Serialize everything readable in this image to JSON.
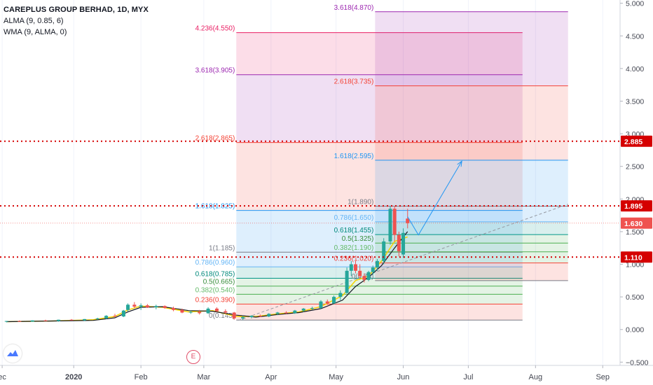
{
  "legend": {
    "title": "CAREPLUS GROUP BERHAD, 1D, MYX",
    "ind1": "ALMA (9, 0.85, 6)",
    "ind2": "WMA (9, ALMA, 0)"
  },
  "colors": {
    "up": "#26a69a",
    "down": "#ef5350",
    "alma": "#f5d300",
    "wma": "#131722",
    "hline": "#d50000",
    "fib_red": "#f44336",
    "fib_purple": "#9c27b0",
    "fib_blue": "#2196f3",
    "fib_green": "#4caf50",
    "axis_text": "#434651"
  },
  "marker_e": "E",
  "chart_data": {
    "type": "candlestick",
    "title": "CAREPLUS GROUP BERHAD, 1D, MYX",
    "y_axis": {
      "ticks": [
        5.0,
        4.5,
        4.0,
        3.5,
        3.0,
        2.5,
        2.0,
        1.5,
        1.0,
        0.5,
        0.0,
        -0.5
      ],
      "tick_labels": [
        "5.000",
        "4.500",
        "4.000",
        "3.500",
        "3.000",
        "2.500",
        "2.000",
        "1.500",
        "1.000",
        "0.500",
        "0.000",
        "−0.500"
      ],
      "ylim": [
        -0.55,
        5.05
      ]
    },
    "x_axis": {
      "ticks": [
        {
          "label": "ec",
          "day": -2,
          "bold": false
        },
        {
          "label": "2020",
          "day": 31,
          "bold": true
        },
        {
          "label": "Feb",
          "day": 62,
          "bold": false
        },
        {
          "label": "Mar",
          "day": 91,
          "bold": false
        },
        {
          "label": "Apr",
          "day": 122,
          "bold": false
        },
        {
          "label": "May",
          "day": 152,
          "bold": false
        },
        {
          "label": "Jun",
          "day": 183,
          "bold": false
        },
        {
          "label": "Jul",
          "day": 213,
          "bold": false
        },
        {
          "label": "Aug",
          "day": 244,
          "bold": false
        },
        {
          "label": "Sep",
          "day": 275,
          "bold": false
        }
      ],
      "xlim": [
        -3,
        283
      ]
    },
    "price_labels": [
      {
        "text": "2.885",
        "value": 2.885,
        "color": "#d50000"
      },
      {
        "text": "1.895",
        "value": 1.895,
        "color": "#d50000"
      },
      {
        "text": "1.630",
        "value": 1.63,
        "color": "#ef5350"
      },
      {
        "text": "1.110",
        "value": 1.11,
        "color": "#d50000"
      }
    ],
    "horizontal_lines": [
      {
        "value": 2.885,
        "style": "dotted"
      },
      {
        "value": 1.895,
        "style": "dotted"
      },
      {
        "value": 1.11,
        "style": "dotted"
      },
      {
        "value": 1.63,
        "style": "thin"
      }
    ],
    "fib_sets": [
      {
        "name": "fib-set-a",
        "x_start": 106,
        "x_end": 238,
        "levels": [
          {
            "ratio": "0",
            "value": 0.145,
            "label": "0(0.145)"
          },
          {
            "ratio": "0.236",
            "value": 0.39,
            "label": "0.236(0.390)"
          },
          {
            "ratio": "0.382",
            "value": 0.54,
            "label": "0.382(0.540)"
          },
          {
            "ratio": "0.5",
            "value": 0.665,
            "label": "0.5(0.665)"
          },
          {
            "ratio": "0.618",
            "value": 0.785,
            "label": "0.618(0.785)"
          },
          {
            "ratio": "0.786",
            "value": 0.96,
            "label": "0.786(0.960)"
          },
          {
            "ratio": "1",
            "value": 1.185,
            "label": "1(1.185)"
          },
          {
            "ratio": "1.618",
            "value": 1.825,
            "label": "1.618(1.825)"
          },
          {
            "ratio": "2.618",
            "value": 2.865,
            "label": "2.618(2.865)"
          },
          {
            "ratio": "3.618",
            "value": 3.905,
            "label": "3.618(3.905)"
          },
          {
            "ratio": "4.236",
            "value": 4.55,
            "label": "4.236(4.550)"
          }
        ]
      },
      {
        "name": "fib-set-b",
        "x_start": 170,
        "x_end": 259,
        "levels": [
          {
            "ratio": "0",
            "value": 0.75,
            "label": "0(0.75)"
          },
          {
            "ratio": "0.236",
            "value": 1.02,
            "label": "0.236(1.020)"
          },
          {
            "ratio": "0.382",
            "value": 1.19,
            "label": "0.382(1.190)"
          },
          {
            "ratio": "0.5",
            "value": 1.325,
            "label": "0.5(1.325)"
          },
          {
            "ratio": "0.618",
            "value": 1.455,
            "label": "0.618(1.455)"
          },
          {
            "ratio": "0.786",
            "value": 1.65,
            "label": "0.786(1.650)"
          },
          {
            "ratio": "1",
            "value": 1.89,
            "label": "1(1.890)"
          },
          {
            "ratio": "1.618",
            "value": 2.595,
            "label": "1.618(2.595)"
          },
          {
            "ratio": "2.618",
            "value": 3.735,
            "label": "2.618(3.735)"
          },
          {
            "ratio": "3.618",
            "value": 4.87,
            "label": "3.618(4.870)"
          }
        ]
      }
    ],
    "projection_arrow": {
      "points": [
        {
          "day": 185,
          "value": 1.73
        },
        {
          "day": 190,
          "value": 1.45
        },
        {
          "day": 210,
          "value": 2.58
        }
      ]
    },
    "trendline": {
      "from": {
        "day": 107,
        "value": 0.14
      },
      "to": {
        "day": 259,
        "value": 1.92
      }
    },
    "candles": [
      {
        "d": 0,
        "o": 0.12,
        "h": 0.13,
        "l": 0.11,
        "c": 0.13
      },
      {
        "d": 6,
        "o": 0.13,
        "h": 0.14,
        "l": 0.12,
        "c": 0.12
      },
      {
        "d": 12,
        "o": 0.12,
        "h": 0.14,
        "l": 0.12,
        "c": 0.14
      },
      {
        "d": 18,
        "o": 0.14,
        "h": 0.15,
        "l": 0.13,
        "c": 0.13
      },
      {
        "d": 24,
        "o": 0.13,
        "h": 0.15,
        "l": 0.12,
        "c": 0.15
      },
      {
        "d": 30,
        "o": 0.15,
        "h": 0.16,
        "l": 0.14,
        "c": 0.14
      },
      {
        "d": 36,
        "o": 0.14,
        "h": 0.16,
        "l": 0.13,
        "c": 0.16
      },
      {
        "d": 42,
        "o": 0.16,
        "h": 0.18,
        "l": 0.15,
        "c": 0.17
      },
      {
        "d": 46,
        "o": 0.17,
        "h": 0.22,
        "l": 0.16,
        "c": 0.21
      },
      {
        "d": 50,
        "o": 0.21,
        "h": 0.24,
        "l": 0.19,
        "c": 0.2
      },
      {
        "d": 54,
        "o": 0.2,
        "h": 0.3,
        "l": 0.19,
        "c": 0.29
      },
      {
        "d": 56,
        "o": 0.3,
        "h": 0.4,
        "l": 0.28,
        "c": 0.38
      },
      {
        "d": 59,
        "o": 0.38,
        "h": 0.42,
        "l": 0.33,
        "c": 0.35
      },
      {
        "d": 62,
        "o": 0.35,
        "h": 0.4,
        "l": 0.3,
        "c": 0.37
      },
      {
        "d": 65,
        "o": 0.37,
        "h": 0.39,
        "l": 0.33,
        "c": 0.34
      },
      {
        "d": 69,
        "o": 0.34,
        "h": 0.38,
        "l": 0.31,
        "c": 0.36
      },
      {
        "d": 73,
        "o": 0.36,
        "h": 0.37,
        "l": 0.32,
        "c": 0.33
      },
      {
        "d": 77,
        "o": 0.33,
        "h": 0.35,
        "l": 0.28,
        "c": 0.3
      },
      {
        "d": 81,
        "o": 0.3,
        "h": 0.32,
        "l": 0.25,
        "c": 0.26
      },
      {
        "d": 85,
        "o": 0.26,
        "h": 0.29,
        "l": 0.24,
        "c": 0.27
      },
      {
        "d": 89,
        "o": 0.27,
        "h": 0.3,
        "l": 0.23,
        "c": 0.25
      },
      {
        "d": 93,
        "o": 0.25,
        "h": 0.34,
        "l": 0.24,
        "c": 0.32
      },
      {
        "d": 97,
        "o": 0.32,
        "h": 0.34,
        "l": 0.27,
        "c": 0.28
      },
      {
        "d": 101,
        "o": 0.28,
        "h": 0.31,
        "l": 0.24,
        "c": 0.26
      },
      {
        "d": 105,
        "o": 0.26,
        "h": 0.27,
        "l": 0.15,
        "c": 0.17
      },
      {
        "d": 109,
        "o": 0.17,
        "h": 0.21,
        "l": 0.145,
        "c": 0.19
      },
      {
        "d": 113,
        "o": 0.19,
        "h": 0.22,
        "l": 0.17,
        "c": 0.21
      },
      {
        "d": 117,
        "o": 0.21,
        "h": 0.23,
        "l": 0.19,
        "c": 0.2
      },
      {
        "d": 121,
        "o": 0.2,
        "h": 0.25,
        "l": 0.19,
        "c": 0.24
      },
      {
        "d": 125,
        "o": 0.24,
        "h": 0.27,
        "l": 0.22,
        "c": 0.26
      },
      {
        "d": 129,
        "o": 0.26,
        "h": 0.28,
        "l": 0.24,
        "c": 0.25
      },
      {
        "d": 133,
        "o": 0.25,
        "h": 0.3,
        "l": 0.24,
        "c": 0.29
      },
      {
        "d": 137,
        "o": 0.29,
        "h": 0.33,
        "l": 0.27,
        "c": 0.32
      },
      {
        "d": 141,
        "o": 0.32,
        "h": 0.35,
        "l": 0.3,
        "c": 0.33
      },
      {
        "d": 145,
        "o": 0.33,
        "h": 0.45,
        "l": 0.31,
        "c": 0.43
      },
      {
        "d": 148,
        "o": 0.43,
        "h": 0.46,
        "l": 0.38,
        "c": 0.4
      },
      {
        "d": 151,
        "o": 0.4,
        "h": 0.52,
        "l": 0.39,
        "c": 0.5
      },
      {
        "d": 154,
        "o": 0.5,
        "h": 0.6,
        "l": 0.45,
        "c": 0.56
      },
      {
        "d": 157,
        "o": 0.56,
        "h": 0.95,
        "l": 0.55,
        "c": 0.9
      },
      {
        "d": 159,
        "o": 0.9,
        "h": 1.05,
        "l": 0.82,
        "c": 1.0
      },
      {
        "d": 161,
        "o": 1.0,
        "h": 1.05,
        "l": 0.86,
        "c": 0.9
      },
      {
        "d": 163,
        "o": 0.9,
        "h": 1.0,
        "l": 0.78,
        "c": 0.82
      },
      {
        "d": 165,
        "o": 0.82,
        "h": 0.86,
        "l": 0.72,
        "c": 0.76
      },
      {
        "d": 167,
        "o": 0.76,
        "h": 0.9,
        "l": 0.74,
        "c": 0.88
      },
      {
        "d": 169,
        "o": 0.88,
        "h": 0.98,
        "l": 0.84,
        "c": 0.95
      },
      {
        "d": 171,
        "o": 0.95,
        "h": 1.08,
        "l": 0.9,
        "c": 1.05
      },
      {
        "d": 174,
        "o": 1.05,
        "h": 1.4,
        "l": 1.0,
        "c": 1.35
      },
      {
        "d": 177,
        "o": 1.35,
        "h": 1.89,
        "l": 1.3,
        "c": 1.85
      },
      {
        "d": 179,
        "o": 1.85,
        "h": 1.89,
        "l": 1.35,
        "c": 1.45
      },
      {
        "d": 181,
        "o": 1.45,
        "h": 1.5,
        "l": 1.12,
        "c": 1.2
      },
      {
        "d": 183,
        "o": 1.15,
        "h": 1.55,
        "l": 1.1,
        "c": 1.48
      },
      {
        "d": 185,
        "o": 1.7,
        "h": 1.85,
        "l": 1.55,
        "c": 1.63
      }
    ],
    "alma_line": [
      {
        "d": 0,
        "v": 0.12
      },
      {
        "d": 20,
        "v": 0.13
      },
      {
        "d": 40,
        "v": 0.15
      },
      {
        "d": 50,
        "v": 0.2
      },
      {
        "d": 56,
        "v": 0.3
      },
      {
        "d": 62,
        "v": 0.36
      },
      {
        "d": 72,
        "v": 0.34
      },
      {
        "d": 84,
        "v": 0.27
      },
      {
        "d": 95,
        "v": 0.29
      },
      {
        "d": 106,
        "v": 0.2
      },
      {
        "d": 115,
        "v": 0.2
      },
      {
        "d": 125,
        "v": 0.24
      },
      {
        "d": 135,
        "v": 0.27
      },
      {
        "d": 145,
        "v": 0.35
      },
      {
        "d": 155,
        "v": 0.52
      },
      {
        "d": 161,
        "v": 0.75
      },
      {
        "d": 167,
        "v": 0.82
      },
      {
        "d": 173,
        "v": 1.05
      },
      {
        "d": 179,
        "v": 1.35
      },
      {
        "d": 185,
        "v": 1.42
      }
    ],
    "wma_line": [
      {
        "d": 0,
        "v": 0.12
      },
      {
        "d": 20,
        "v": 0.13
      },
      {
        "d": 40,
        "v": 0.14
      },
      {
        "d": 50,
        "v": 0.18
      },
      {
        "d": 56,
        "v": 0.27
      },
      {
        "d": 62,
        "v": 0.34
      },
      {
        "d": 72,
        "v": 0.35
      },
      {
        "d": 84,
        "v": 0.29
      },
      {
        "d": 95,
        "v": 0.28
      },
      {
        "d": 106,
        "v": 0.22
      },
      {
        "d": 115,
        "v": 0.19
      },
      {
        "d": 125,
        "v": 0.23
      },
      {
        "d": 135,
        "v": 0.26
      },
      {
        "d": 145,
        "v": 0.32
      },
      {
        "d": 155,
        "v": 0.45
      },
      {
        "d": 161,
        "v": 0.66
      },
      {
        "d": 167,
        "v": 0.8
      },
      {
        "d": 173,
        "v": 0.98
      },
      {
        "d": 179,
        "v": 1.25
      },
      {
        "d": 185,
        "v": 1.5
      }
    ]
  }
}
